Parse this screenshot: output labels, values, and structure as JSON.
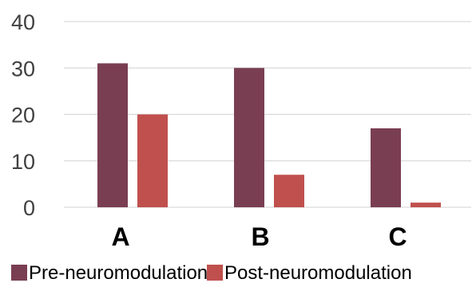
{
  "chart_data": {
    "type": "bar",
    "title": "",
    "xlabel": "",
    "ylabel": "",
    "categories": [
      "A",
      "B",
      "C"
    ],
    "series": [
      {
        "name": "Pre-neuromodulation",
        "values": [
          31,
          30,
          17
        ],
        "color": "#7a3e52"
      },
      {
        "name": "Post-neuromodulation",
        "values": [
          20,
          7,
          1
        ],
        "color": "#c0504d"
      }
    ],
    "ylim": [
      0,
      40
    ],
    "yticks": [
      0,
      10,
      20,
      30,
      40
    ],
    "grid": true,
    "legend_position": "bottom"
  }
}
